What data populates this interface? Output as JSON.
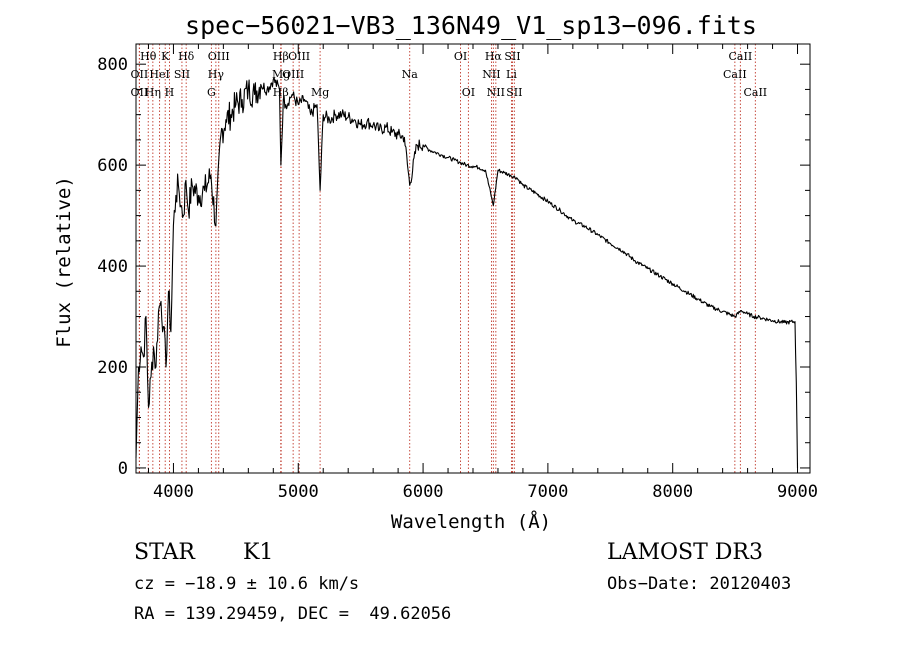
{
  "chart_data": {
    "type": "line",
    "title": "spec−56021−VB3_136N49_V1_sp13−096.fits",
    "xlabel": "Wavelength (Å)",
    "ylabel": "Flux (relative)",
    "xlim": [
      3700,
      9100
    ],
    "ylim": [
      -10,
      840
    ],
    "x_ticks": [
      4000,
      5000,
      6000,
      7000,
      8000,
      9000
    ],
    "y_ticks": [
      0,
      200,
      400,
      600,
      800
    ],
    "series": [
      {
        "name": "flux",
        "x": [
          3700,
          3720,
          3740,
          3760,
          3780,
          3800,
          3820,
          3840,
          3860,
          3880,
          3900,
          3920,
          3940,
          3960,
          3980,
          4000,
          4020,
          4040,
          4060,
          4080,
          4100,
          4120,
          4150,
          4200,
          4250,
          4300,
          4340,
          4380,
          4420,
          4460,
          4500,
          4550,
          4600,
          4650,
          4700,
          4750,
          4800,
          4850,
          4861,
          4880,
          4900,
          4950,
          5000,
          5050,
          5100,
          5150,
          5175,
          5200,
          5250,
          5300,
          5350,
          5400,
          5450,
          5500,
          5550,
          5600,
          5650,
          5700,
          5750,
          5800,
          5850,
          5893,
          5950,
          6000,
          6050,
          6100,
          6150,
          6200,
          6250,
          6300,
          6350,
          6400,
          6450,
          6500,
          6563,
          6600,
          6650,
          6700,
          6750,
          6800,
          6900,
          7000,
          7100,
          7200,
          7300,
          7400,
          7500,
          7600,
          7700,
          7800,
          7900,
          8000,
          8100,
          8200,
          8300,
          8400,
          8500,
          8550,
          8600,
          8650,
          8700,
          8800,
          8900,
          8980,
          8990,
          9000
        ],
        "y": [
          20,
          200,
          240,
          220,
          300,
          120,
          180,
          240,
          200,
          310,
          330,
          280,
          200,
          350,
          270,
          480,
          540,
          560,
          520,
          500,
          570,
          510,
          560,
          540,
          550,
          580,
          480,
          660,
          690,
          700,
          720,
          730,
          750,
          740,
          760,
          750,
          770,
          750,
          600,
          730,
          720,
          740,
          720,
          730,
          700,
          720,
          550,
          700,
          690,
          700,
          700,
          695,
          690,
          680,
          685,
          680,
          670,
          675,
          665,
          660,
          655,
          560,
          640,
          640,
          630,
          625,
          620,
          615,
          610,
          605,
          600,
          598,
          595,
          590,
          520,
          590,
          585,
          580,
          575,
          560,
          545,
          528,
          510,
          490,
          478,
          462,
          445,
          430,
          410,
          395,
          380,
          365,
          350,
          335,
          320,
          310,
          300,
          312,
          305,
          300,
          298,
          292,
          288,
          290,
          170,
          0
        ]
      }
    ],
    "lines": [
      {
        "label": "Hθ",
        "x": 3798,
        "row": 0
      },
      {
        "label": "K",
        "x": 3934,
        "row": 0
      },
      {
        "label": "Hδ",
        "x": 4102,
        "row": 0
      },
      {
        "label": "OIII",
        "x": 4363,
        "row": 0
      },
      {
        "label": "Hβ",
        "x": 4861,
        "row": 0
      },
      {
        "label": "OIII",
        "x": 5007,
        "row": 0
      },
      {
        "label": "OI",
        "x": 6300,
        "row": 0
      },
      {
        "label": "Hα",
        "x": 6563,
        "row": 0
      },
      {
        "label": "SII",
        "x": 6716,
        "row": 0
      },
      {
        "label": "CaII",
        "x": 8542,
        "row": 0
      },
      {
        "label": "OII",
        "x": 3727,
        "row": 1
      },
      {
        "label": "HeI",
        "x": 3889,
        "row": 1
      },
      {
        "label": "SII",
        "x": 4068,
        "row": 1
      },
      {
        "label": "Hγ",
        "x": 4340,
        "row": 1
      },
      {
        "label": "Mg",
        "x": 4863,
        "row": 1
      },
      {
        "label": "OIII",
        "x": 4959,
        "row": 1
      },
      {
        "label": "Na",
        "x": 5893,
        "row": 1
      },
      {
        "label": "NII",
        "x": 6548,
        "row": 1
      },
      {
        "label": "Li",
        "x": 6708,
        "row": 1
      },
      {
        "label": "CaII",
        "x": 8498,
        "row": 1
      },
      {
        "label": "OII",
        "x": 3727,
        "row": 2
      },
      {
        "label": "Hη",
        "x": 3835,
        "row": 2
      },
      {
        "label": "H",
        "x": 3968,
        "row": 2
      },
      {
        "label": "G",
        "x": 4304,
        "row": 2
      },
      {
        "label": "Hβ",
        "x": 4860,
        "row": 2
      },
      {
        "label": "Mg",
        "x": 5175,
        "row": 2
      },
      {
        "label": "OI",
        "x": 6363,
        "row": 2
      },
      {
        "label": "NII",
        "x": 6583,
        "row": 2
      },
      {
        "label": "SII",
        "x": 6731,
        "row": 2
      },
      {
        "label": "CaII",
        "x": 8662,
        "row": 2
      }
    ]
  },
  "footer": {
    "object_type": "STAR",
    "subclass": "K1",
    "survey": "LAMOST DR3",
    "redshift": "cz = −18.9 ± 10.6 km/s",
    "obs_date": "Obs−Date: 20120403",
    "coords": "RA = 139.29459, DEC =  49.62056"
  }
}
